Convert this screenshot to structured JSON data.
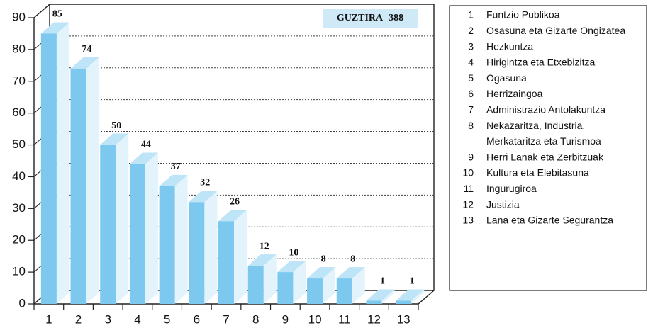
{
  "chart_data": {
    "type": "bar3d",
    "categories": [
      "1",
      "2",
      "3",
      "4",
      "5",
      "6",
      "7",
      "8",
      "9",
      "10",
      "11",
      "12",
      "13"
    ],
    "values": [
      85,
      74,
      50,
      44,
      37,
      32,
      26,
      12,
      10,
      8,
      8,
      1,
      1
    ],
    "color": "#7cc8ee",
    "ylim": [
      0,
      90
    ],
    "yticks": [
      0,
      10,
      20,
      30,
      40,
      50,
      60,
      70,
      80,
      90
    ],
    "grid": true,
    "total_label": "GUZTIRA",
    "total": 388,
    "legend": [
      {
        "key": "1",
        "lines": [
          "Funtzio Publikoa"
        ]
      },
      {
        "key": "2",
        "lines": [
          "Osasuna eta Gizarte Ongizatea"
        ]
      },
      {
        "key": "3",
        "lines": [
          "Hezkuntza"
        ]
      },
      {
        "key": "4",
        "lines": [
          "Hirigintza eta Etxebizitza"
        ]
      },
      {
        "key": "5",
        "lines": [
          "Ogasuna"
        ]
      },
      {
        "key": "6",
        "lines": [
          "Herrizaingoa"
        ]
      },
      {
        "key": "7",
        "lines": [
          "Administrazio Antolakuntza"
        ]
      },
      {
        "key": "8",
        "lines": [
          "Nekazaritza, Industria,",
          "Merkataritza eta Turismoa"
        ]
      },
      {
        "key": "9",
        "lines": [
          "Herri Lanak eta Zerbitzuak"
        ]
      },
      {
        "key": "10",
        "lines": [
          "Kultura eta Elebitasuna"
        ]
      },
      {
        "key": "11",
        "lines": [
          "Ingurugiroa"
        ]
      },
      {
        "key": "12",
        "lines": [
          "Justizia"
        ]
      },
      {
        "key": "13",
        "lines": [
          "Lana eta Gizarte Segurantza"
        ]
      }
    ]
  }
}
